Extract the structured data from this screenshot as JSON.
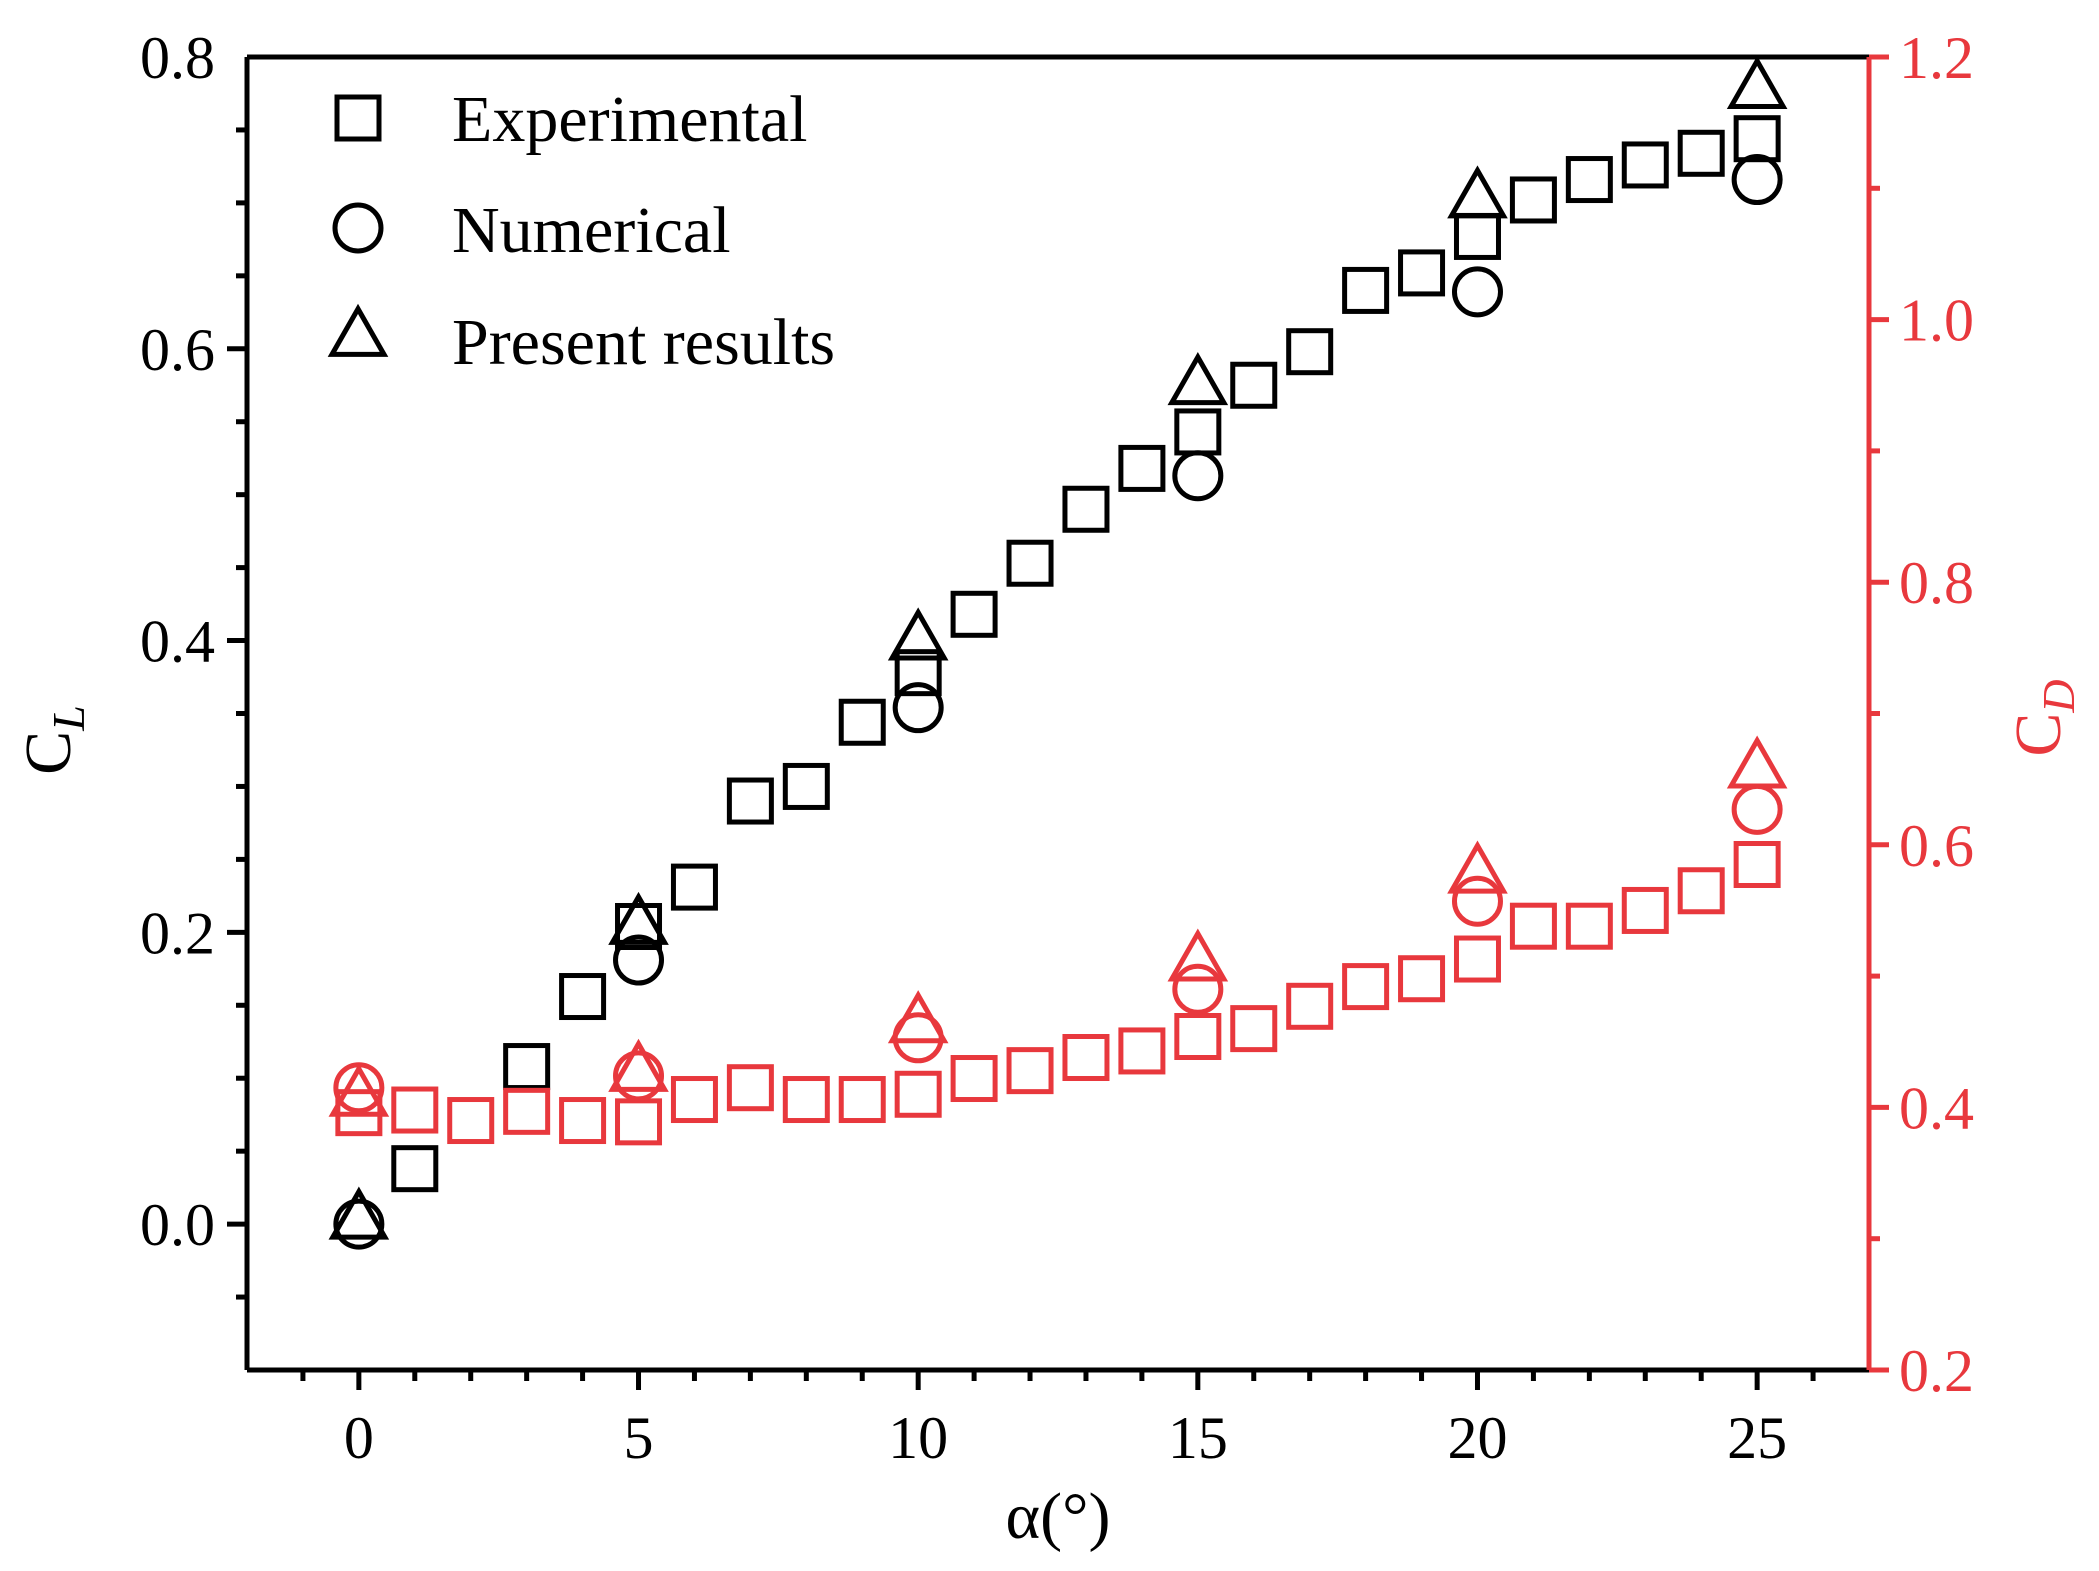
{
  "chart_data": {
    "type": "scatter",
    "xlabel": "α(°)",
    "ylabel_left": {
      "main": "C",
      "sub": "L"
    },
    "ylabel_right": {
      "main": "C",
      "sub": "D"
    },
    "xlim": [
      -2,
      27
    ],
    "ylim_left": [
      -0.1,
      0.8
    ],
    "ylim_right": [
      0.2,
      1.2
    ],
    "x_ticks": [
      0,
      5,
      10,
      15,
      20,
      25
    ],
    "x_tick_labels": [
      "0",
      "5",
      "10",
      "15",
      "20",
      "25"
    ],
    "y_left_ticks": [
      0.0,
      0.2,
      0.4,
      0.6,
      0.8
    ],
    "y_left_tick_labels": [
      "0.0",
      "0.2",
      "0.4",
      "0.6",
      "0.8"
    ],
    "y_right_ticks": [
      0.2,
      0.4,
      0.6,
      0.8,
      1.0,
      1.2
    ],
    "y_right_tick_labels": [
      "0.2",
      "0.4",
      "0.6",
      "0.8",
      "1.0",
      "1.2"
    ],
    "colors": {
      "cl": "#000000",
      "cd": "#e8383d"
    },
    "legend": {
      "position": "top-left",
      "entries": [
        {
          "label": "Experimental",
          "marker": "square"
        },
        {
          "label": "Numerical",
          "marker": "circle"
        },
        {
          "label": "Present results",
          "marker": "triangle"
        }
      ]
    },
    "series": [
      {
        "name": "Experimental C_L",
        "axis": "left",
        "marker": "square",
        "color_key": "cl",
        "x": [
          1,
          3,
          4,
          5,
          6,
          7,
          8,
          9,
          10,
          11,
          12,
          13,
          14,
          15,
          16,
          17,
          18,
          19,
          20,
          21,
          22,
          23,
          24,
          25
        ],
        "y": [
          0.038,
          0.108,
          0.156,
          0.204,
          0.231,
          0.29,
          0.3,
          0.344,
          0.378,
          0.418,
          0.453,
          0.49,
          0.518,
          0.543,
          0.575,
          0.598,
          0.64,
          0.652,
          0.677,
          0.702,
          0.716,
          0.726,
          0.734,
          0.744
        ]
      },
      {
        "name": "Numerical C_L",
        "axis": "left",
        "marker": "circle",
        "color_key": "cl",
        "x": [
          0,
          5,
          10,
          15,
          20,
          25
        ],
        "y": [
          0.0,
          0.181,
          0.354,
          0.513,
          0.639,
          0.716
        ]
      },
      {
        "name": "Present results C_L",
        "axis": "left",
        "marker": "triangle",
        "color_key": "cl",
        "x": [
          0,
          5,
          10,
          15,
          20,
          25
        ],
        "y": [
          0.003,
          0.205,
          0.4,
          0.575,
          0.703,
          0.778
        ]
      },
      {
        "name": "Experimental C_D",
        "axis": "right",
        "marker": "square",
        "color_key": "cd",
        "x": [
          0,
          1,
          2,
          3,
          4,
          5,
          6,
          7,
          8,
          9,
          10,
          11,
          12,
          13,
          14,
          15,
          16,
          17,
          18,
          19,
          20,
          21,
          22,
          23,
          24,
          25
        ],
        "y": [
          0.396,
          0.398,
          0.39,
          0.397,
          0.39,
          0.389,
          0.406,
          0.415,
          0.406,
          0.406,
          0.41,
          0.422,
          0.428,
          0.438,
          0.443,
          0.454,
          0.46,
          0.477,
          0.492,
          0.498,
          0.513,
          0.538,
          0.538,
          0.55,
          0.565,
          0.585
        ]
      },
      {
        "name": "Numerical C_D",
        "axis": "right",
        "marker": "circle",
        "color_key": "cd",
        "x": [
          0,
          5,
          10,
          15,
          20,
          25
        ],
        "y": [
          0.415,
          0.424,
          0.453,
          0.49,
          0.557,
          0.627
        ]
      },
      {
        "name": "Present results C_D",
        "axis": "right",
        "marker": "triangle",
        "color_key": "cd",
        "x": [
          0,
          5,
          10,
          15,
          20,
          25
        ],
        "y": [
          0.408,
          0.427,
          0.464,
          0.511,
          0.578,
          0.658
        ]
      }
    ]
  }
}
